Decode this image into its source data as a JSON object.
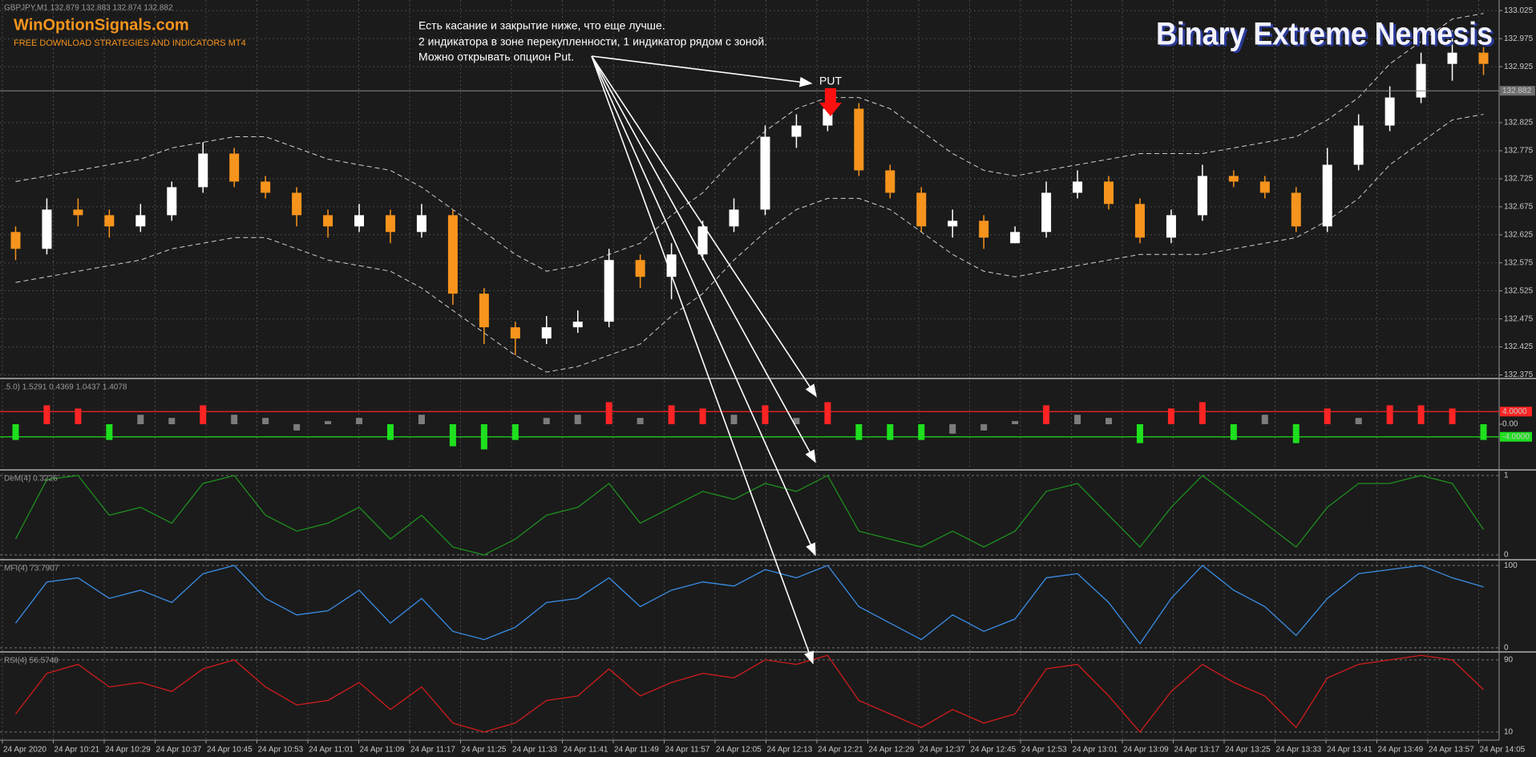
{
  "chart_data": [
    {
      "type": "candlestick",
      "title": "GBPJPY,M1 132.879 132.883 132.874 132.882",
      "watermark_title": "WinOptionSignals.com",
      "watermark_subtitle": "FREE DOWNLOAD STRATEGIES AND INDICATORS MT4",
      "brand": "Binary Extreme Nemesis",
      "annotation_lines": [
        "Есть касание и закрытие ниже, что еще лучше.",
        "2 индикатора в зоне перекупленности, 1 индикатор рядом с зоной.",
        "Можно открывать опцион Put."
      ],
      "signal_label": "PUT",
      "x_labels": [
        "24 Apr 2020",
        "24 Apr 10:21",
        "24 Apr 10:29",
        "24 Apr 10:37",
        "24 Apr 10:45",
        "24 Apr 10:53",
        "24 Apr 11:01",
        "24 Apr 11:09",
        "24 Apr 11:17",
        "24 Apr 11:25",
        "24 Apr 11:33",
        "24 Apr 11:41",
        "24 Apr 11:49",
        "24 Apr 11:57",
        "24 Apr 12:05",
        "24 Apr 12:13",
        "24 Apr 12:21",
        "24 Apr 12:29",
        "24 Apr 12:37",
        "24 Apr 12:45",
        "24 Apr 12:53",
        "24 Apr 13:01",
        "24 Apr 13:09",
        "24 Apr 13:17",
        "24 Apr 13:25",
        "24 Apr 13:33",
        "24 Apr 13:41",
        "24 Apr 13:49",
        "24 Apr 13:57",
        "24 Apr 14:05"
      ],
      "open": [
        132.63,
        132.6,
        132.67,
        132.66,
        132.64,
        132.66,
        132.71,
        132.77,
        132.72,
        132.7,
        132.66,
        132.64,
        132.66,
        132.63,
        132.66,
        132.52,
        132.46,
        132.44,
        132.46,
        132.47,
        132.58,
        132.55,
        132.59,
        132.64,
        132.67,
        132.8,
        132.82,
        132.85,
        132.74,
        132.7,
        132.64,
        132.65,
        132.61,
        132.63,
        132.7,
        132.72,
        132.68,
        132.62,
        132.66,
        132.73,
        132.72,
        132.7,
        132.64,
        132.75,
        132.82,
        132.87,
        132.93,
        132.95
      ],
      "high": [
        132.64,
        132.69,
        132.69,
        132.67,
        132.68,
        132.72,
        132.79,
        132.78,
        132.73,
        132.71,
        132.67,
        132.68,
        132.67,
        132.68,
        132.67,
        132.53,
        132.47,
        132.48,
        132.49,
        132.6,
        132.59,
        132.61,
        132.65,
        132.69,
        132.82,
        132.84,
        132.86,
        132.86,
        132.75,
        132.71,
        132.67,
        132.66,
        132.64,
        132.72,
        132.74,
        132.73,
        132.69,
        132.67,
        132.75,
        132.74,
        132.73,
        132.71,
        132.78,
        132.84,
        132.89,
        132.95,
        132.99,
        132.96
      ],
      "low": [
        132.58,
        132.59,
        132.64,
        132.62,
        132.63,
        132.65,
        132.7,
        132.71,
        132.69,
        132.64,
        132.62,
        132.63,
        132.61,
        132.62,
        132.5,
        132.43,
        132.41,
        132.43,
        132.45,
        132.46,
        132.53,
        132.51,
        132.58,
        132.63,
        132.66,
        132.78,
        132.81,
        132.73,
        132.69,
        132.63,
        132.62,
        132.6,
        132.61,
        132.62,
        132.69,
        132.67,
        132.61,
        132.61,
        132.65,
        132.71,
        132.69,
        132.63,
        132.63,
        132.74,
        132.81,
        132.86,
        132.9,
        132.91
      ],
      "close": [
        132.6,
        132.67,
        132.66,
        132.64,
        132.66,
        132.71,
        132.77,
        132.72,
        132.7,
        132.66,
        132.64,
        132.66,
        132.63,
        132.66,
        132.52,
        132.46,
        132.44,
        132.46,
        132.47,
        132.58,
        132.55,
        132.59,
        132.64,
        132.67,
        132.8,
        132.82,
        132.85,
        132.74,
        132.7,
        132.64,
        132.65,
        132.62,
        132.63,
        132.7,
        132.72,
        132.68,
        132.62,
        132.66,
        132.73,
        132.72,
        132.7,
        132.64,
        132.75,
        132.82,
        132.87,
        132.93,
        132.95,
        132.93
      ],
      "upper_band": [
        132.72,
        132.73,
        132.74,
        132.75,
        132.76,
        132.78,
        132.79,
        132.8,
        132.8,
        132.78,
        132.76,
        132.75,
        132.74,
        132.71,
        132.67,
        132.63,
        132.59,
        132.56,
        132.57,
        132.59,
        132.61,
        132.66,
        132.7,
        132.76,
        132.81,
        132.85,
        132.87,
        132.87,
        132.85,
        132.81,
        132.77,
        132.74,
        132.73,
        132.74,
        132.75,
        132.76,
        132.77,
        132.77,
        132.77,
        132.78,
        132.79,
        132.8,
        132.83,
        132.87,
        132.93,
        132.97,
        133.01,
        133.02
      ],
      "lower_band": [
        132.54,
        132.55,
        132.56,
        132.57,
        132.58,
        132.6,
        132.61,
        132.62,
        132.62,
        132.6,
        132.58,
        132.57,
        132.56,
        132.53,
        132.49,
        132.45,
        132.41,
        132.38,
        132.39,
        132.41,
        132.43,
        132.48,
        132.52,
        132.58,
        132.63,
        132.67,
        132.69,
        132.69,
        132.67,
        132.63,
        132.59,
        132.56,
        132.55,
        132.56,
        132.57,
        132.58,
        132.59,
        132.59,
        132.59,
        132.6,
        132.61,
        132.62,
        132.65,
        132.69,
        132.75,
        132.79,
        132.83,
        132.84
      ],
      "band_color": "#cfcfcf",
      "up_color": "#ffffff",
      "down_color": "#f7941d",
      "ylim": [
        132.37,
        133.044
      ],
      "yticks": [
        132.375,
        132.425,
        132.475,
        132.525,
        132.575,
        132.625,
        132.675,
        132.725,
        132.775,
        132.825,
        132.925,
        132.975,
        133.025
      ],
      "last_price": 132.882,
      "grid": true
    },
    {
      "type": "bar",
      "title": ".5.0) 1.5291 0.4369 1.0437 1.4078",
      "values": [
        -5,
        6,
        5,
        -5,
        3,
        2,
        6,
        3,
        2,
        -2,
        1,
        2,
        -5,
        3,
        -7,
        -8,
        -5,
        2,
        3,
        7,
        2,
        6,
        5,
        3,
        6,
        2,
        7,
        -5,
        -5,
        -5,
        -3,
        -2,
        1,
        6,
        3,
        2,
        -6,
        5,
        7,
        -5,
        3,
        -6,
        5,
        2,
        6,
        6,
        5,
        -5
      ],
      "color": "#7c7c7c",
      "above_color": "#ff2424",
      "below_color": "#1ee01e",
      "ylim": [
        -14,
        14
      ],
      "yticks": [
        {
          "value": 4,
          "label": "4.0000"
        },
        {
          "value": 0,
          "label": "0.00"
        },
        {
          "value": -4,
          "label": "-4.0000"
        }
      ]
    },
    {
      "type": "line",
      "title": "DeM(4) 0.3226",
      "values": [
        0.2,
        0.95,
        1,
        0.5,
        0.6,
        0.4,
        0.9,
        1,
        0.5,
        0.3,
        0.4,
        0.6,
        0.2,
        0.5,
        0.1,
        0,
        0.2,
        0.5,
        0.6,
        0.9,
        0.4,
        0.6,
        0.8,
        0.7,
        0.9,
        0.8,
        1,
        0.3,
        0.2,
        0.1,
        0.3,
        0.1,
        0.3,
        0.8,
        0.9,
        0.5,
        0.1,
        0.6,
        1,
        0.7,
        0.4,
        0.1,
        0.6,
        0.9,
        0.9,
        1,
        0.9,
        0.32
      ],
      "color": "#1f8f1f",
      "ylim": [
        -0.05,
        1.05
      ],
      "yticks": [
        0,
        1
      ]
    },
    {
      "type": "line",
      "title": "MFI(4) 73.7907",
      "values": [
        30,
        80,
        85,
        60,
        70,
        55,
        90,
        100,
        60,
        40,
        45,
        70,
        30,
        60,
        20,
        10,
        25,
        55,
        60,
        85,
        50,
        70,
        80,
        75,
        95,
        85,
        100,
        50,
        30,
        10,
        40,
        20,
        35,
        85,
        90,
        55,
        5,
        60,
        100,
        70,
        50,
        15,
        60,
        90,
        95,
        100,
        85,
        74
      ],
      "color": "#3a8ee6",
      "ylim": [
        -5,
        105
      ],
      "yticks": [
        0,
        100
      ]
    },
    {
      "type": "line",
      "title": "RSI(4) 56.5748",
      "values": [
        30,
        75,
        85,
        60,
        65,
        55,
        80,
        90,
        60,
        40,
        45,
        65,
        35,
        60,
        20,
        10,
        20,
        45,
        50,
        80,
        50,
        65,
        75,
        70,
        90,
        85,
        95,
        45,
        30,
        15,
        35,
        20,
        30,
        80,
        85,
        50,
        10,
        55,
        85,
        65,
        50,
        15,
        70,
        85,
        90,
        95,
        90,
        57
      ],
      "color": "#d01c1c",
      "ylim": [
        1,
        97
      ],
      "yticks": [
        10,
        90
      ]
    }
  ]
}
